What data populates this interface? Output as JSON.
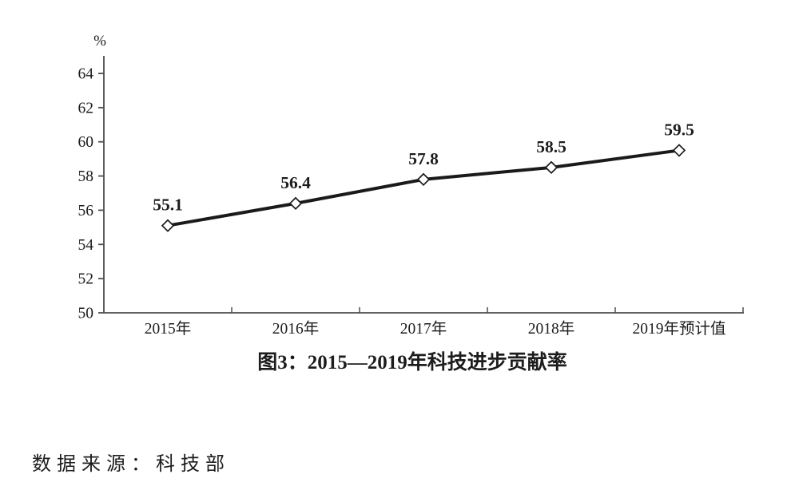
{
  "chart_data": {
    "type": "line",
    "title": "图3：2015—2019年科技进步贡献率",
    "y_axis_unit": "%",
    "categories": [
      "2015年",
      "2016年",
      "2017年",
      "2018年",
      "2019年预计值"
    ],
    "values": [
      55.1,
      56.4,
      57.8,
      58.5,
      59.5
    ],
    "data_labels": [
      "55.1",
      "56.4",
      "57.8",
      "58.5",
      "59.5"
    ],
    "yticks": [
      50,
      52,
      54,
      56,
      58,
      60,
      62,
      64
    ],
    "ylim": [
      50,
      64
    ],
    "grid": false,
    "legend": "none",
    "marker": "open-diamond",
    "line_color": "#1a1a1a",
    "axis_color": "#4d4d4d",
    "text_color": "#1d1d1d"
  },
  "source_note": "数据来源：科技部"
}
